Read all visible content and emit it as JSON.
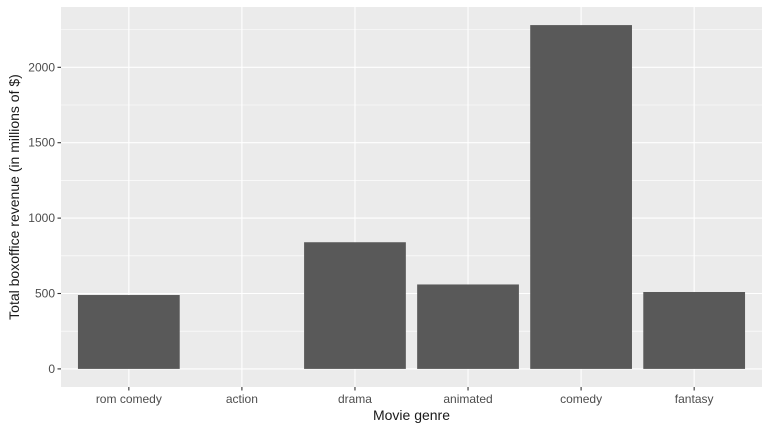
{
  "chart_data": {
    "type": "bar",
    "categories": [
      "rom comedy",
      "action",
      "drama",
      "animated",
      "comedy",
      "fantasy"
    ],
    "values": [
      490,
      0,
      840,
      560,
      2280,
      510
    ],
    "xlabel": "Movie genre",
    "ylabel": "Total boxoffice revenue (in millions of $)",
    "ylim": [
      -120,
      2400
    ],
    "yticks": [
      0,
      500,
      1000,
      1500,
      2000
    ],
    "grid": true,
    "colors": {
      "bar": "#595959",
      "panel": "#ebebeb",
      "grid_major": "#ffffff",
      "tick_text": "#4d4d4d",
      "axis_title": "#1a1a1a"
    }
  }
}
